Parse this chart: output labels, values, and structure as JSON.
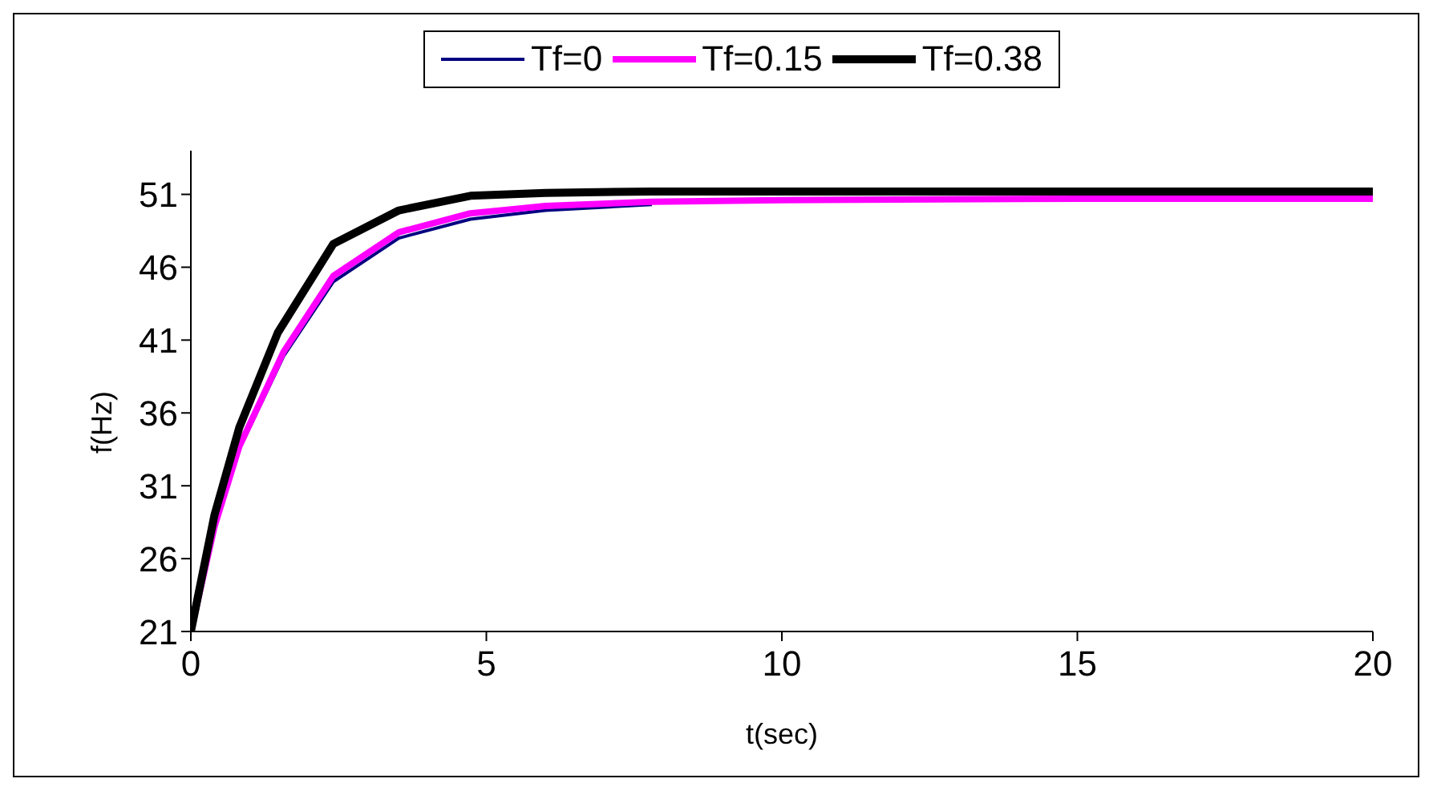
{
  "chart_data": {
    "type": "line",
    "xlabel": "t(sec)",
    "ylabel": "f(Hz)",
    "xlim": [
      0,
      20
    ],
    "xticks": [
      0,
      5,
      10,
      15,
      20
    ],
    "ylim": [
      21,
      54
    ],
    "yticks": [
      21,
      26,
      31,
      36,
      41,
      46,
      51
    ],
    "grid": false,
    "legend": "top",
    "marker": "none",
    "line_style": "solid",
    "series": [
      {
        "name": "Tf=0",
        "color": "#000080",
        "x": [
          0.82,
          1.57,
          2.41,
          3.52,
          4.73,
          6,
          7.8
        ],
        "values": [
          33.5,
          39.9,
          45,
          48,
          49.3,
          49.9,
          50.3
        ]
      },
      {
        "name": "Tf=0.15",
        "color": "#ff00ff",
        "x": [
          0,
          0.4,
          0.82,
          1.57,
          2.41,
          3.52,
          4.73,
          6,
          7.8,
          10,
          15,
          20
        ],
        "values": [
          21,
          28.2,
          33.7,
          40.2,
          45.4,
          48.4,
          49.7,
          50.2,
          50.5,
          50.6,
          50.7,
          50.7
        ]
      },
      {
        "name": "Tf=0.38",
        "color": "#000000",
        "x": [
          0,
          0.4,
          0.82,
          1.47,
          2.41,
          3.52,
          4.73,
          6,
          7.8,
          10,
          15,
          20
        ],
        "values": [
          21,
          29,
          35,
          41.5,
          47.6,
          49.9,
          50.9,
          51.1,
          51.2,
          51.2,
          51.2,
          51.2
        ]
      }
    ]
  }
}
